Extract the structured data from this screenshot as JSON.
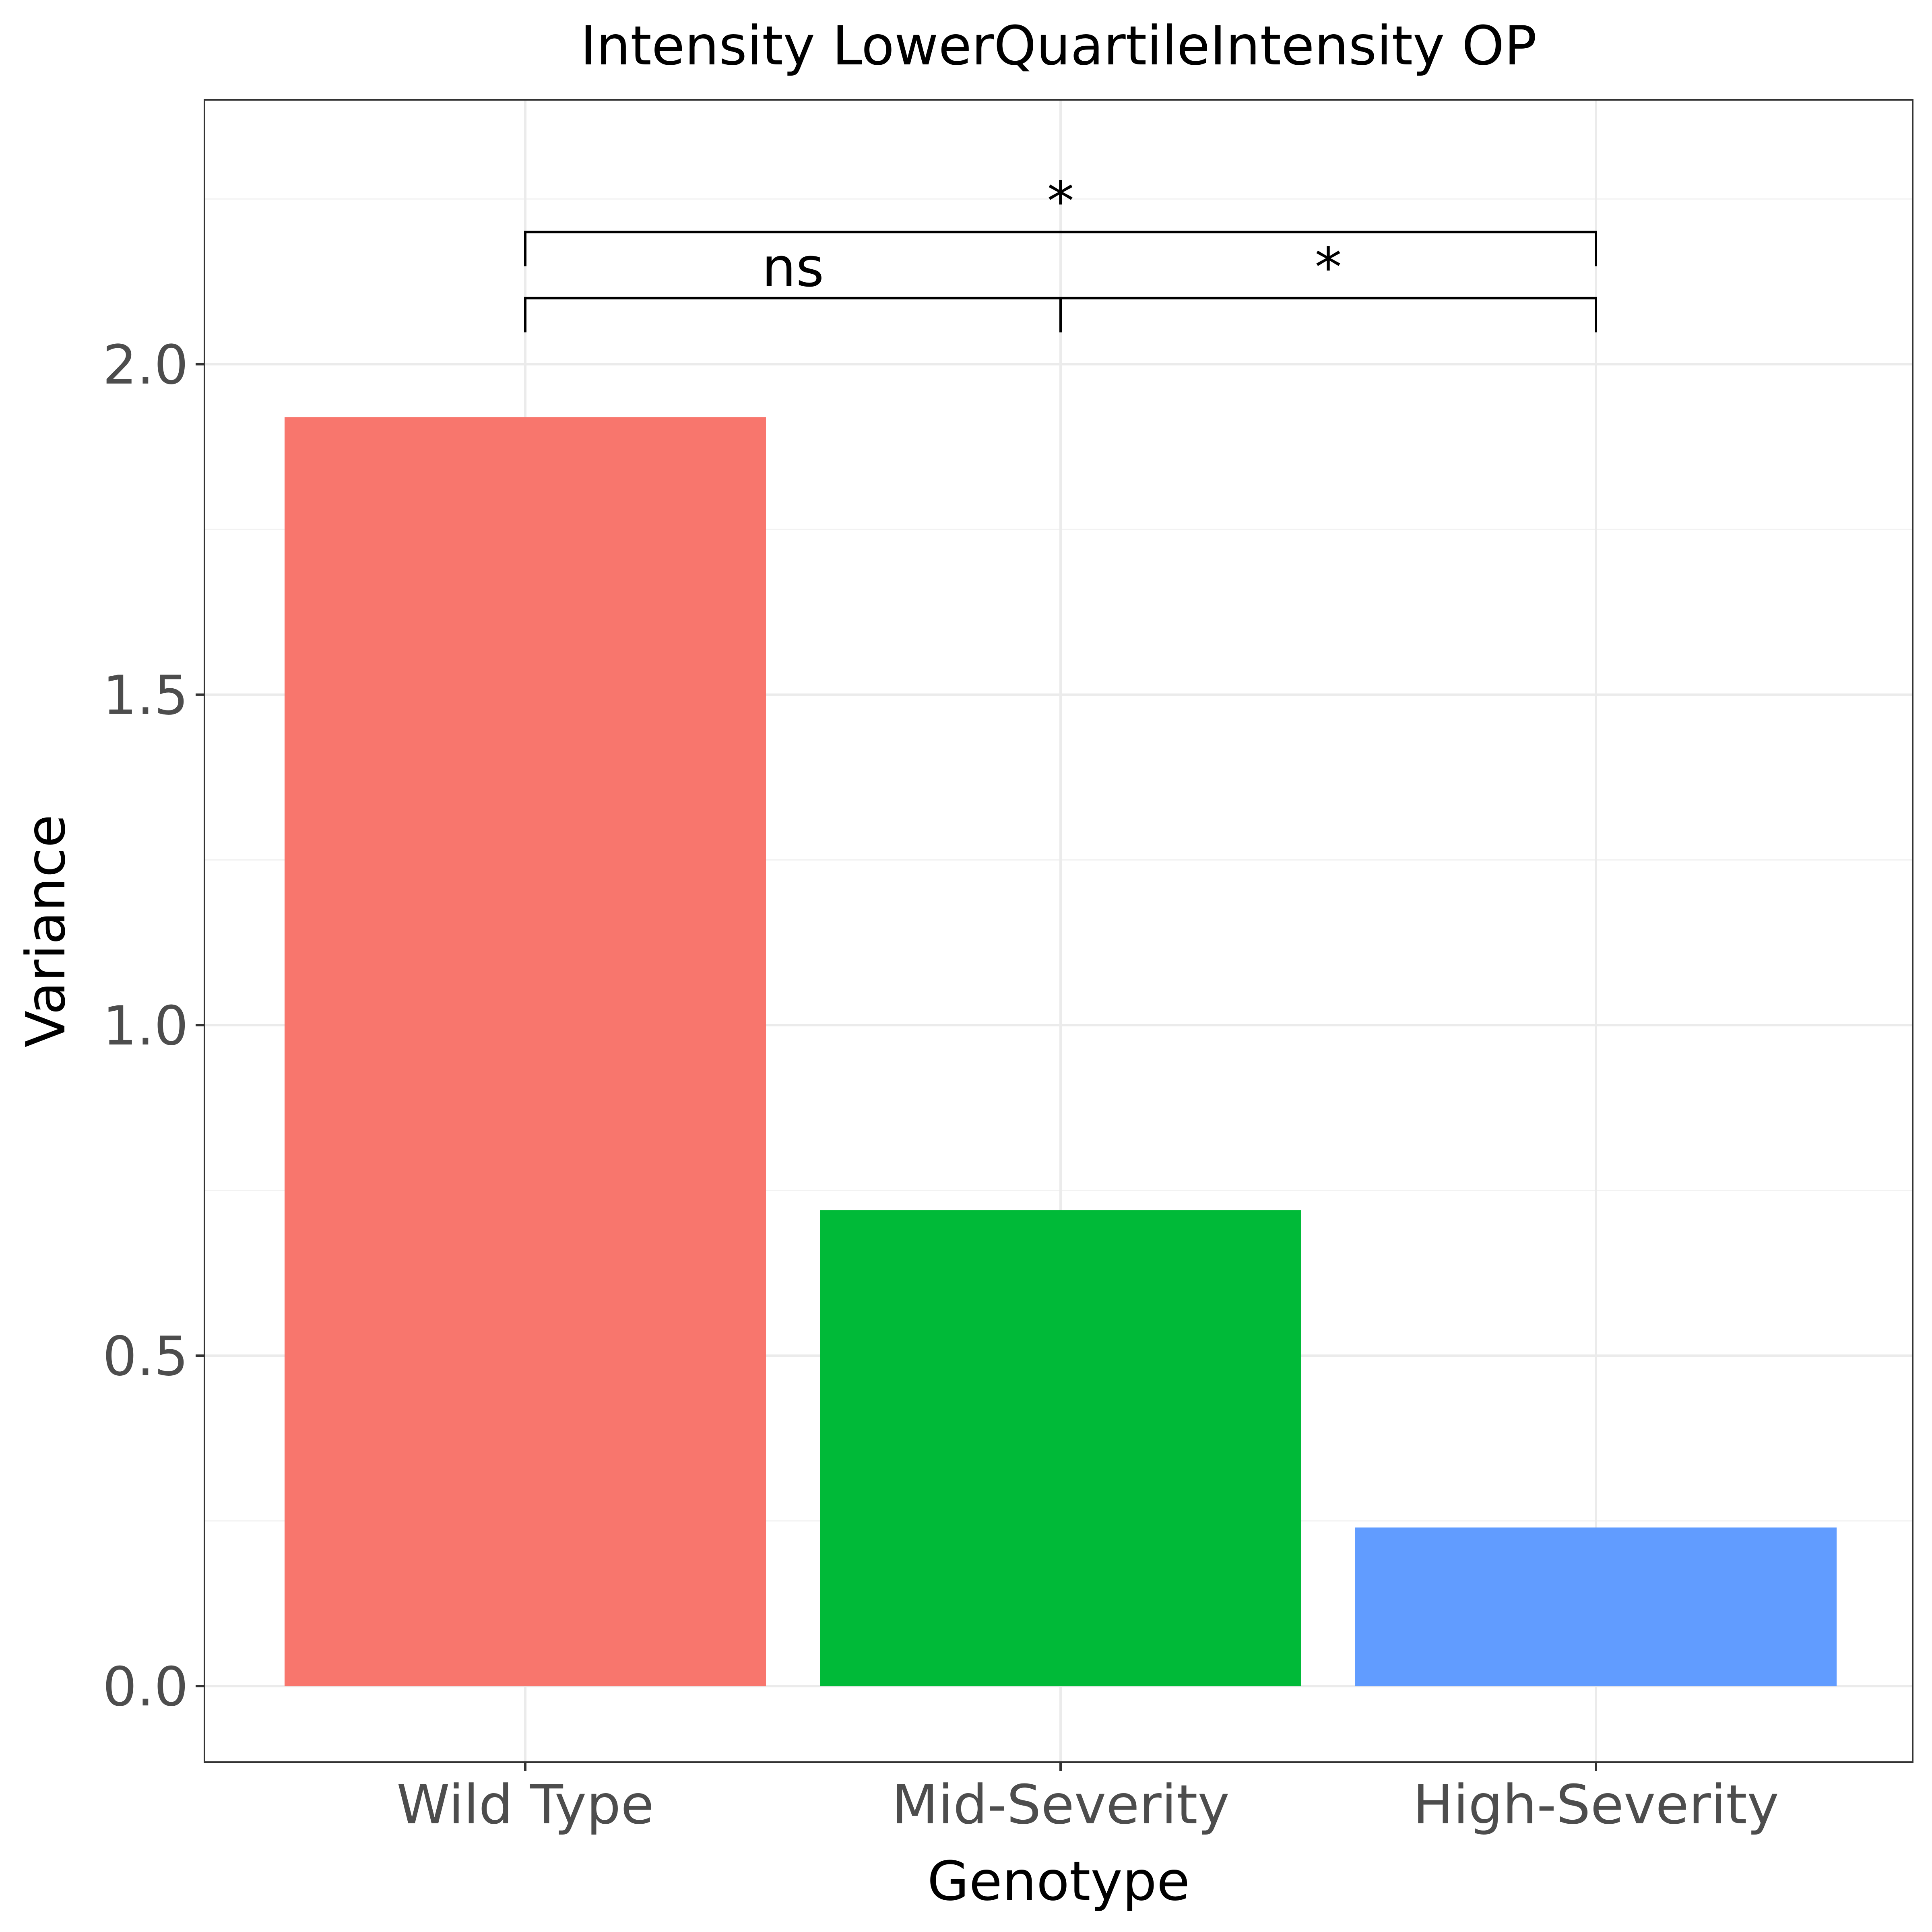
{
  "chart_data": {
    "type": "bar",
    "title": "Intensity LowerQuartileIntensity OP",
    "xlabel": "Genotype",
    "ylabel": "Variance",
    "categories": [
      "Wild Type",
      "Mid-Severity",
      "High-Severity"
    ],
    "values": [
      1.92,
      0.72,
      0.24
    ],
    "colors": [
      "#F8766D",
      "#00BA38",
      "#619CFF"
    ],
    "ylim": [
      -0.115,
      2.4
    ],
    "yticks": [
      0.0,
      0.5,
      1.0,
      1.5,
      2.0
    ],
    "ytick_labels": [
      "0.0",
      "0.5",
      "1.0",
      "1.5",
      "2.0"
    ],
    "grid": true,
    "legend": "none",
    "significance": [
      {
        "from": "Wild Type",
        "to": "Mid-Severity",
        "label": "ns",
        "y": 2.1
      },
      {
        "from": "Mid-Severity",
        "to": "High-Severity",
        "label": "*",
        "y": 2.1
      },
      {
        "from": "Wild Type",
        "to": "High-Severity",
        "label": "*",
        "y": 2.2
      }
    ]
  }
}
